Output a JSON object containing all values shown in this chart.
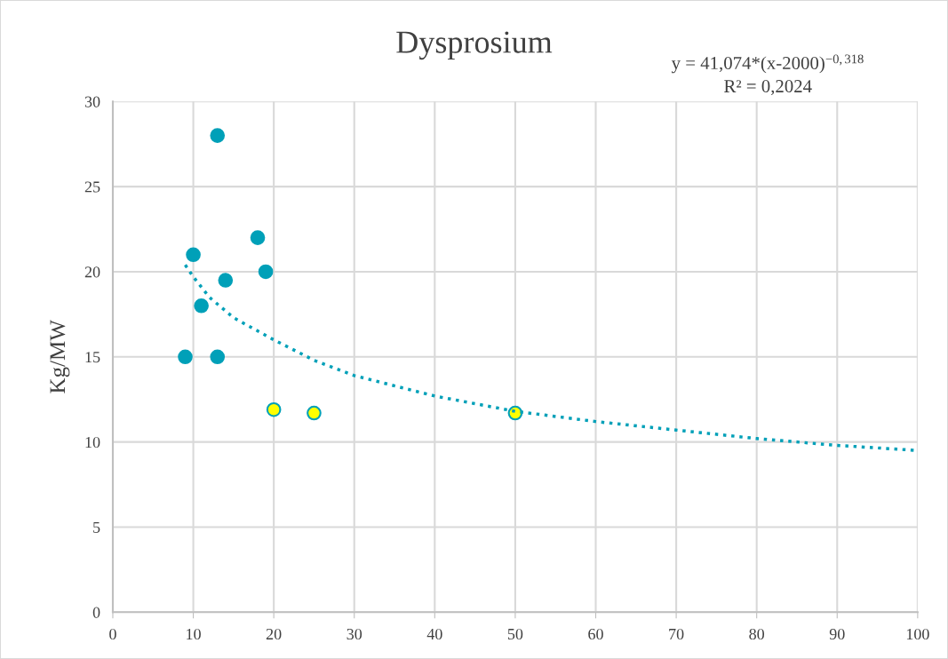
{
  "chart_data": {
    "type": "scatter",
    "title": "Dysprosium",
    "ylabel": "Kg/MW",
    "annotations": [
      "y = 41,074*(x-2000)$^{−0,318}$",
      "R² = 0,2024"
    ],
    "series": [
      {
        "color": "#00a0b8",
        "x": [
          9,
          10,
          11,
          13,
          13,
          14,
          18,
          19
        ],
        "values": [
          15,
          21,
          18,
          28,
          15,
          19.5,
          22,
          20
        ]
      },
      {
        "color": "#ffff00",
        "x": [
          20,
          25,
          50
        ],
        "values": [
          11.9,
          11.7,
          11.7
        ]
      },
      {
        "type": "line",
        "line_style": "dotted",
        "marker": "none",
        "color": "#00a0b8",
        "x": [
          9,
          10,
          12,
          15,
          20,
          25,
          30,
          40,
          50,
          60,
          70,
          80,
          90,
          100
        ],
        "values": [
          20.4,
          19.7,
          18.5,
          17.3,
          16.0,
          14.8,
          13.9,
          12.7,
          11.8,
          11.2,
          10.7,
          10.2,
          9.8,
          9.5
        ]
      }
    ],
    "marker": "circle",
    "xlim": [
      0,
      100
    ],
    "xticks": [
      0,
      10,
      20,
      30,
      40,
      50,
      60,
      70,
      80,
      90,
      100
    ],
    "ylim": [
      0,
      30
    ],
    "yticks": [
      0,
      5,
      10,
      15,
      20,
      25,
      30
    ],
    "grid": true,
    "legend": false
  }
}
